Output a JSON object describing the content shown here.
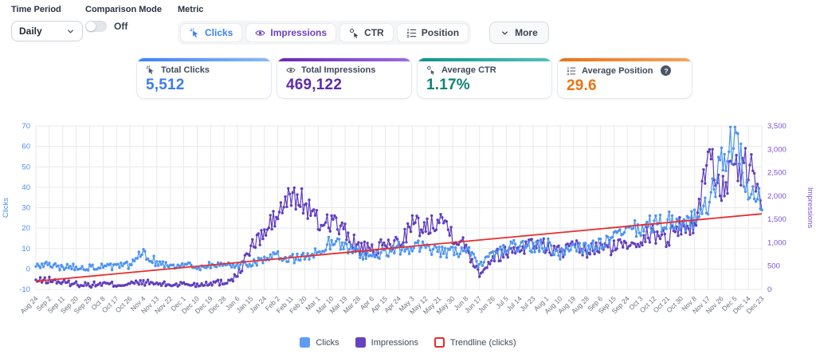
{
  "controls": {
    "time_period": {
      "label": "Time Period",
      "value": "Daily"
    },
    "comparison_mode": {
      "label": "Comparison Mode",
      "value": "Off"
    },
    "metric": {
      "label": "Metric",
      "buttons": [
        {
          "label": "Clicks",
          "icon": "cursor-click-icon",
          "color": "#3B82F6"
        },
        {
          "label": "Impressions",
          "icon": "eye-icon",
          "color": "#6D3FC4"
        },
        {
          "label": "CTR",
          "icon": "cursor-ctr-icon",
          "color": "#3A4352"
        },
        {
          "label": "Position",
          "icon": "list-numbers-icon",
          "color": "#3A4352"
        }
      ],
      "more_label": "More"
    }
  },
  "summary_cards": [
    {
      "label": "Total Clicks",
      "value": "5,512",
      "icon": "cursor-click-icon",
      "accent": "#3B82F6",
      "accent2": "#8AB9F9",
      "value_color": "#3D7BF2"
    },
    {
      "label": "Total Impressions",
      "value": "469,122",
      "icon": "eye-icon",
      "accent": "#6527B8",
      "accent2": "#9E6CE0",
      "value_color": "#5D2BAE"
    },
    {
      "label": "Average CTR",
      "value": "1.17%",
      "icon": "cursor-ctr-icon",
      "accent": "#0D9488",
      "accent2": "#4FC3B8",
      "value_color": "#0E8378"
    },
    {
      "label": "Average Position",
      "value": "29.6",
      "icon": "list-numbers-icon",
      "accent": "#EE7112",
      "accent2": "#F8A45C",
      "value_color": "#EE7112",
      "help": "?"
    }
  ],
  "chart_data": {
    "type": "line",
    "days_per_tick": 9,
    "grid_color": "#E8E9EC",
    "x_label_color": "#6B7280",
    "x_axis": {
      "tick_labels": [
        "Aug 24",
        "Sep 2",
        "Sep 11",
        "Sep 20",
        "Sep 29",
        "Oct 8",
        "Oct 17",
        "Oct 26",
        "Nov 4",
        "Nov 13",
        "Nov 22",
        "Dec 1",
        "Dec 10",
        "Dec 19",
        "Dec 28",
        "Jan 6",
        "Jan 15",
        "Jan 24",
        "Feb 2",
        "Feb 11",
        "Feb 20",
        "Mar 1",
        "Mar 10",
        "Mar 19",
        "Mar 28",
        "Apr 6",
        "Apr 15",
        "Apr 24",
        "May 3",
        "May 12",
        "May 21",
        "May 30",
        "Jun 8",
        "Jun 17",
        "Jun 26",
        "Jul 5",
        "Jul 14",
        "Jul 23",
        "Aug 1",
        "Aug 10",
        "Aug 19",
        "Aug 28",
        "Sep 6",
        "Sep 15",
        "Sep 24",
        "Oct 3",
        "Oct 12",
        "Oct 21",
        "Oct 30",
        "Nov 8",
        "Nov 17",
        "Nov 26",
        "Dec 5",
        "Dec 14",
        "Dec 23"
      ]
    },
    "left_axis": {
      "label": "Clicks",
      "min": -10,
      "max": 70,
      "ticks": [
        70,
        60,
        50,
        40,
        30,
        20,
        10,
        0,
        -10
      ],
      "color": "#4C8DF5"
    },
    "right_axis": {
      "label": "Impressions",
      "min": 0,
      "max": 3500,
      "ticks": [
        "3,500",
        "3,000",
        "2,500",
        "2,000",
        "1,500",
        "1,000",
        "500",
        "0"
      ],
      "color": "#7C4FD6"
    },
    "series": [
      {
        "name": "Impressions",
        "axis": "right",
        "color": "#5F3DBE",
        "keypoint_values": [
          180,
          200,
          150,
          120,
          100,
          120,
          100,
          120,
          150,
          120,
          100,
          120,
          100,
          150,
          150,
          300,
          900,
          1200,
          1600,
          2000,
          1850,
          1400,
          1500,
          1200,
          900,
          800,
          950,
          1000,
          1400,
          1300,
          1600,
          1200,
          900,
          350,
          700,
          800,
          900,
          1000,
          900,
          800,
          900,
          800,
          900,
          900,
          1000,
          1100,
          1200,
          1100,
          1400,
          1300,
          2900,
          2200,
          2500,
          2700,
          1900
        ]
      },
      {
        "name": "Clicks",
        "axis": "left",
        "color": "#4D94F2",
        "keypoint_values": [
          1,
          2,
          1,
          1,
          1,
          1,
          1,
          2,
          8,
          3,
          2,
          2,
          1,
          2,
          2,
          2,
          3,
          5,
          6,
          5,
          6,
          8,
          14,
          11,
          8,
          6,
          8,
          10,
          10,
          12,
          8,
          8,
          10,
          1,
          8,
          10,
          12,
          10,
          12,
          7,
          12,
          10,
          12,
          15,
          18,
          20,
          22,
          24,
          22,
          25,
          30,
          52,
          65,
          35,
          32
        ]
      }
    ],
    "trendline": {
      "name": "Trendline (clicks)",
      "axis": "left",
      "color": "#E82C2C",
      "start_value": -6,
      "end_value": 27
    },
    "legend": [
      {
        "label": "Clicks",
        "color": "#5E9CF6",
        "style": "fill"
      },
      {
        "label": "Impressions",
        "color": "#6742C0",
        "style": "fill"
      },
      {
        "label": "Trendline (clicks)",
        "color": "#E82C2C",
        "style": "outline"
      }
    ]
  }
}
